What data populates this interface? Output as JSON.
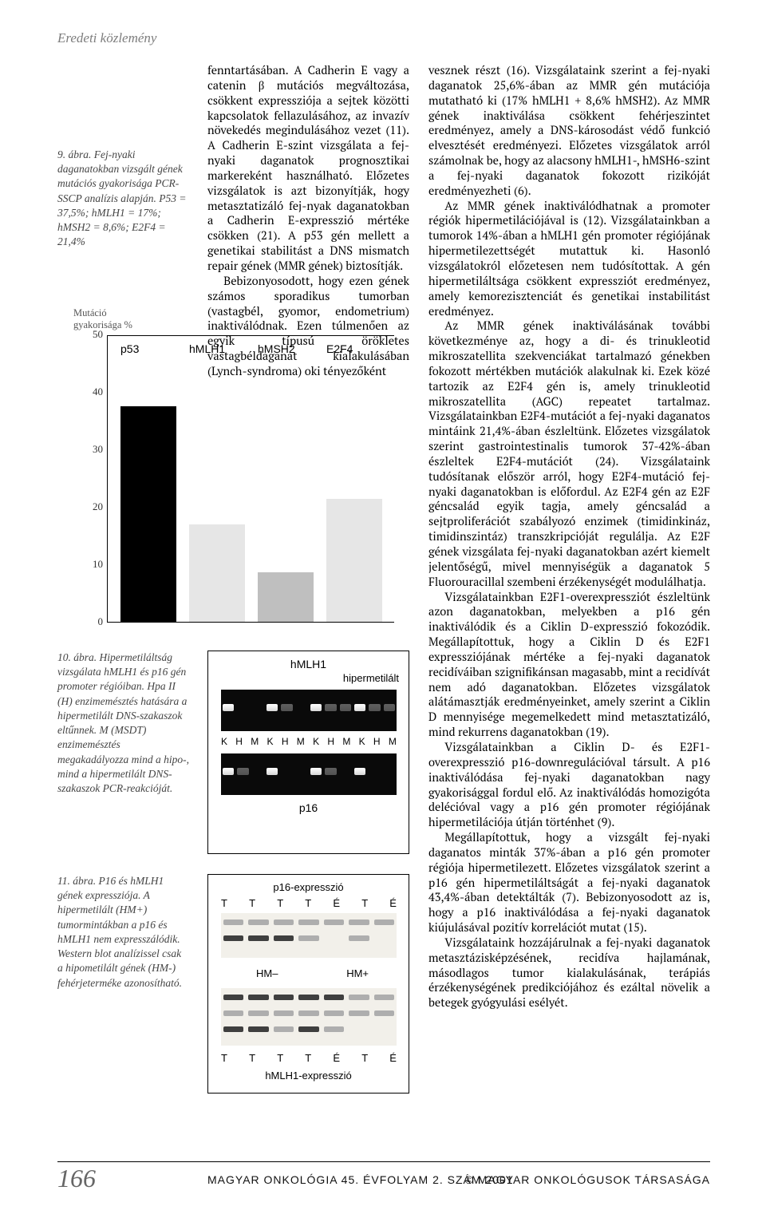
{
  "header_section": "Eredeti közlemény",
  "caption9": "9. ábra. Fej-nyaki daganatokban vizsgált gének mutációs gyakorisága PCR-SSCP analízis alapján. P53 = 37,5%; hMLH1 = 17%; hMSH2 = 8,6%; E2F4 = 21,4%",
  "caption10": "10. ábra. Hipermetiláltság vizsgálata hMLH1 és p16 gén promoter régióiban. Hpa II (H) enzimemésztés hatására a hipermetilált DNS-szakaszok eltűnnek. M (MSDT) enzimemésztés megakadályozza mind a hipo-, mind a hipermetilált DNS-szakaszok PCR-reakcióját.",
  "caption11": "11. ábra. P16 és hMLH1 gének expressziója. A hipermetilált (HM+) tumormintákban a p16 és hMLH1 nem expresszálódik. Western blot analízissel csak a hipometilált gének (HM-) fehérjeterméke azonosítható.",
  "fig9": {
    "type": "bar",
    "ylab": "Mutáció\ngyakorisága %",
    "categories": [
      "p53",
      "hMLH1",
      "hMSH2",
      "E2F4"
    ],
    "values": [
      37.5,
      17,
      8.6,
      21.4
    ],
    "bar_colors": [
      "#000000",
      "#e6e6e6",
      "#bfbfbf",
      "#e6e6e6"
    ],
    "ylim": [
      0,
      50
    ],
    "ytick_step": 10,
    "ytick_labels": [
      "0",
      "10",
      "20",
      "30",
      "40",
      "50"
    ],
    "label_fontsize": 14
  },
  "fig10": {
    "type": "gel",
    "title_top": "hMLH1",
    "title_right": "hipermetilált",
    "title_bottom": "p16",
    "lane_labels": [
      "K",
      "H",
      "M",
      "K",
      "H",
      "M",
      "K",
      "H",
      "M",
      "K",
      "H",
      "M"
    ],
    "row_count": 2,
    "band_color": "#f2f2f2",
    "bg_color": "#080808"
  },
  "fig11": {
    "type": "western-blot",
    "title_top": "p16-expresszió",
    "title_bottom": "hMLH1-expresszió",
    "lane_labels": [
      "T",
      "T",
      "T",
      "T",
      "É",
      "T",
      "É"
    ],
    "group_left": "HM–",
    "group_right": "HM+",
    "band_dark": "#3f3f3f",
    "band_light": "#aeaeae",
    "bg": "#f2f0ea"
  },
  "mid_paragraphs": [
    "fenntartásában. A Cadherin E vagy a catenin β mutációs megváltozása, csökkent expressziója a sejtek közötti kapcsolatok fellazulásához, az invazív növekedés megindulásához vezet (11). A Cadherin E-szint vizsgálata a fej-nyaki daganatok prognosztikai markereként használható. Előzetes vizsgálatok is azt bizonyítják, hogy metasztatizáló fej-nyak daganatokban a Cadherin E-expresszió mértéke csökken (21). A p53 gén mellett a genetikai stabilitást a DNS mismatch repair gének (MMR gének) biztosítják.",
    "Bebizonyosodott, hogy ezen gének számos sporadikus tumorban (vastagbél, gyomor, endometrium) inaktiválódnak. Ezen túlmenően az egyik típusú örökletes vastagbéldaganat kialakulásában (Lynch-syndroma) oki tényezőként"
  ],
  "right_paragraphs": [
    "vesznek részt (16). Vizsgálataink szerint a fej-nyaki daganatok 25,6%-ában az MMR gén mutációja mutatható ki (17% hMLH1 + 8,6% hMSH2). Az MMR gének inaktiválása csökkent fehérjeszintet eredményez, amely a DNS-károsodást védő funkció elvesztését eredményezi. Előzetes vizsgálatok arról számolnak be, hogy az alacsony hMLH1-, hMSH6-szint a fej-nyaki daganatok fokozott rizikóját eredményezheti (6).",
    "Az MMR gének inaktiválódhatnak a promoter régiók hipermetilációjával is (12). Vizsgálatainkban a tumorok 14%-ában a hMLH1 gén promoter régiójának hipermetilezettségét mutattuk ki. Hasonló vizsgálatokról előzetesen nem tudósítottak. A gén hipermetiláltsága csökkent expressziót eredményez, amely kemorezisztenciát és genetikai instabilitást eredményez.",
    "Az MMR gének inaktiválásának további következménye az, hogy a di- és trinukleotid mikroszatellita szekvenciákat tartalmazó génekben fokozott mértékben mutációk alakulnak ki. Ezek közé tartozik az E2F4 gén is, amely trinukleotid mikroszatellita (AGC) repeatet tartalmaz. Vizsgálatainkban E2F4-mutációt a fej-nyaki daganatos mintáink 21,4%-ában észleltünk. Előzetes vizsgálatok szerint gastrointestinalis tumorok 37-42%-ában észleltek E2F4-mutációt (24). Vizsgálataink tudósítanak először arról, hogy E2F4-mutáció fej-nyaki daganatokban is előfordul. Az E2F4 gén az E2F géncsalád egyik tagja, amely géncsalád a sejtproliferációt szabályozó enzimek (timidinkináz, timidinszintáz) transzkripcióját regulálja. Az E2F gének vizsgálata fej-nyaki daganatokban azért kiemelt jelentőségű, mivel mennyiségük a daganatok 5 Fluorouracillal szembeni érzékenységét modulálhatja.",
    "Vizsgálatainkban E2F1-overexpressziót észleltünk azon daganatokban, melyekben a p16 gén inaktiválódik és a Ciklin D-expresszió fokozódik. Megállapítottuk, hogy a Ciklin D és E2F1 expressziójának mértéke a fej-nyaki daganatok recidíváiban szignifikánsan magasabb, mint a recidívát nem adó daganatokban. Előzetes vizsgálatok alátámasztják eredményeinket, amely szerint a Ciklin D mennyisége megemelkedett mind metasztatizáló, mind rekurrens daganatokban (19).",
    "Vizsgálatainkban a Ciklin D- és E2F1-overexpresszió p16-downregulációval társult. A p16 inaktiválódása fej-nyaki daganatokban nagy gyakorisággal fordul elő. Az inaktiválódás homozigóta delécióval vagy a p16 gén promoter régiójának hipermetilációja útján történhet (9).",
    "Megállapítottuk, hogy a vizsgált fej-nyaki daganatos minták 37%-ában a p16 gén promoter régiója hipermetilezett. Előzetes vizsgálatok szerint a p16 gén hipermetiláltságát a fej-nyaki daganatok 43,4%-ában detektálták (7). Bebizonyosodott az is, hogy a p16 inaktiválódása a fej-nyaki daganatok kiújulásával pozitív korrelációt mutat (15).",
    "Vizsgálataink hozzájárulnak a fej-nyaki daganatok metasztázisképzésének, recidíva hajlamának, másodlagos tumor kialakulásának, terápiás érzékenységének predikciójához és ezáltal növelik a betegek gyógyulási esélyét."
  ],
  "footer": {
    "page": "166",
    "journal": "MAGYAR ONKOLÓGIA  45. ÉVFOLYAM  2. SZÁM  2001",
    "copyright": "© MAGYAR ONKOLÓGUSOK TÁRSASÁGA"
  }
}
